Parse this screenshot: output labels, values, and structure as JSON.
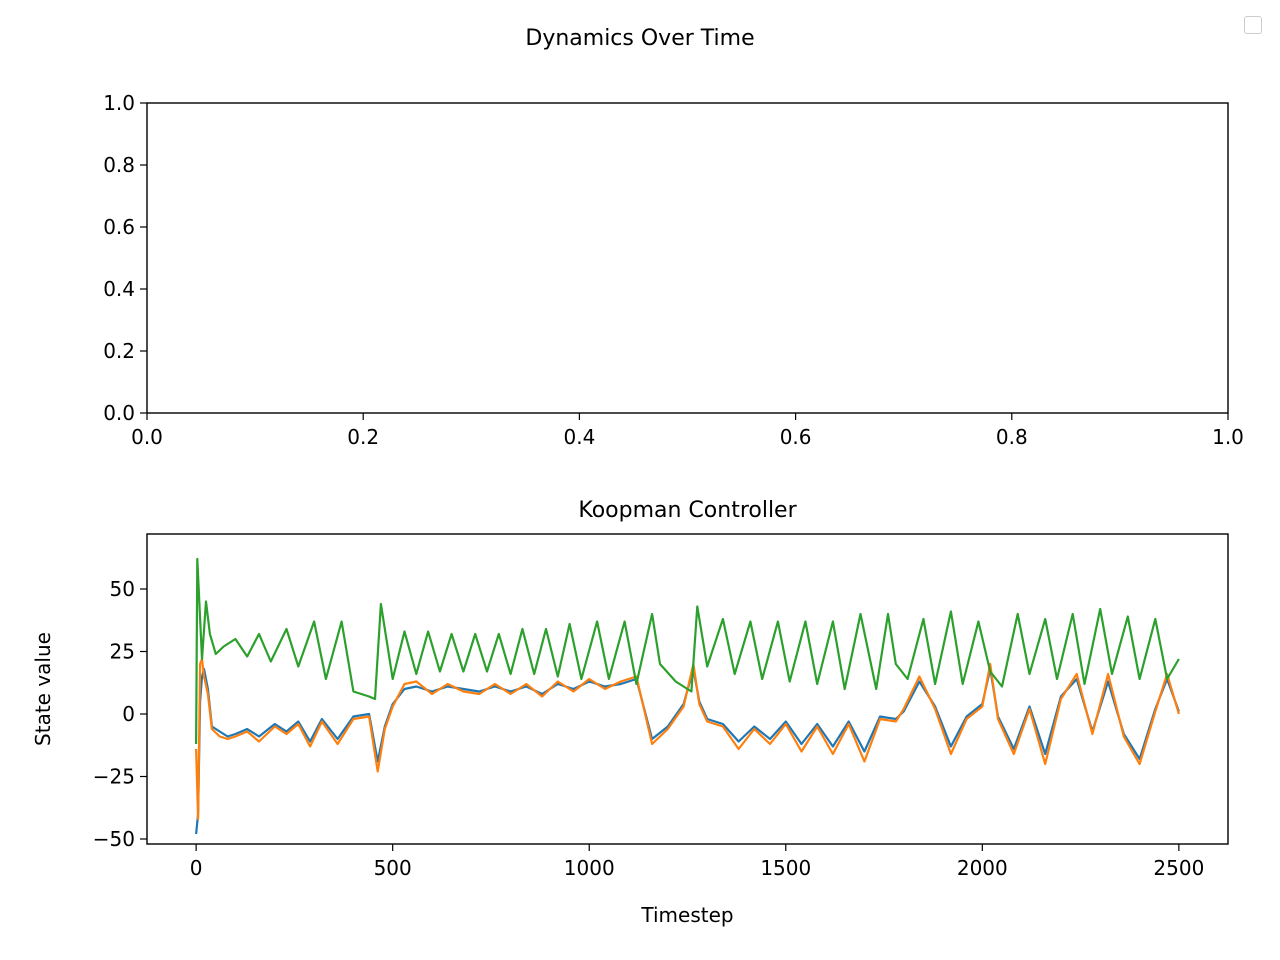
{
  "figure": {
    "suptitle": "Dynamics Over Time"
  },
  "chart_data": [
    {
      "type": "line",
      "title": "",
      "xlabel": "",
      "ylabel": "",
      "xlim": [
        0.0,
        1.0
      ],
      "ylim": [
        0.0,
        1.0
      ],
      "xticks": [
        "0.0",
        "0.2",
        "0.4",
        "0.6",
        "0.8",
        "1.0"
      ],
      "yticks": [
        "0.0",
        "0.2",
        "0.4",
        "0.6",
        "0.8",
        "1.0"
      ],
      "series": [],
      "legend": "top-right (empty)",
      "grid": false
    },
    {
      "type": "line",
      "title": "Koopman Controller",
      "xlabel": "Timestep",
      "ylabel": "State value",
      "xlim": [
        -125,
        2625
      ],
      "ylim": [
        -52,
        72
      ],
      "xticks": [
        "0",
        "500",
        "1000",
        "1500",
        "2000",
        "2500"
      ],
      "yticks": [
        "−50",
        "−25",
        "0",
        "25",
        "50"
      ],
      "grid": false,
      "series": [
        {
          "color": "#1f77b4",
          "x": [
            0,
            5,
            10,
            15,
            20,
            30,
            40,
            60,
            80,
            100,
            130,
            160,
            200,
            230,
            260,
            290,
            320,
            360,
            400,
            440,
            462,
            480,
            500,
            530,
            560,
            600,
            640,
            680,
            720,
            760,
            800,
            840,
            880,
            920,
            960,
            1000,
            1040,
            1080,
            1120,
            1160,
            1200,
            1240,
            1265,
            1280,
            1300,
            1340,
            1380,
            1420,
            1460,
            1500,
            1540,
            1580,
            1620,
            1660,
            1700,
            1740,
            1780,
            1800,
            1840,
            1880,
            1920,
            1960,
            2000,
            2020,
            2040,
            2080,
            2120,
            2160,
            2200,
            2240,
            2280,
            2320,
            2360,
            2400,
            2440,
            2470,
            2500
          ],
          "y": [
            -48,
            -40,
            5,
            15,
            18,
            10,
            -5,
            -7,
            -9,
            -8,
            -6,
            -9,
            -4,
            -7,
            -3,
            -11,
            -2,
            -10,
            -1,
            0,
            -19,
            -5,
            4,
            10,
            11,
            9,
            11,
            10,
            9,
            11,
            9,
            11,
            8,
            12,
            10,
            13,
            11,
            12,
            14,
            -10,
            -5,
            4,
            18,
            5,
            -2,
            -4,
            -11,
            -5,
            -10,
            -3,
            -12,
            -4,
            -13,
            -3,
            -15,
            -1,
            -2,
            1,
            13,
            3,
            -13,
            -1,
            4,
            18,
            -1,
            -14,
            3,
            -16,
            7,
            14,
            -7,
            13,
            -8,
            -18,
            2,
            14,
            1
          ]
        },
        {
          "color": "#ff7f0e",
          "x": [
            0,
            5,
            10,
            15,
            20,
            30,
            40,
            60,
            80,
            100,
            130,
            160,
            200,
            230,
            260,
            290,
            320,
            360,
            400,
            440,
            462,
            480,
            500,
            530,
            560,
            600,
            640,
            680,
            720,
            760,
            800,
            840,
            880,
            920,
            960,
            1000,
            1040,
            1080,
            1120,
            1160,
            1200,
            1240,
            1265,
            1280,
            1300,
            1340,
            1380,
            1420,
            1460,
            1500,
            1540,
            1580,
            1620,
            1660,
            1700,
            1740,
            1780,
            1800,
            1840,
            1880,
            1920,
            1960,
            2000,
            2020,
            2040,
            2080,
            2120,
            2160,
            2200,
            2240,
            2280,
            2320,
            2360,
            2400,
            2440,
            2470,
            2500
          ],
          "y": [
            -14,
            -42,
            20,
            22,
            15,
            8,
            -6,
            -9,
            -10,
            -9,
            -7,
            -11,
            -5,
            -8,
            -4,
            -13,
            -3,
            -12,
            -2,
            -1,
            -23,
            -6,
            3,
            12,
            13,
            8,
            12,
            9,
            8,
            12,
            8,
            12,
            7,
            13,
            9,
            14,
            10,
            13,
            15,
            -12,
            -6,
            3,
            20,
            4,
            -3,
            -5,
            -14,
            -6,
            -12,
            -4,
            -15,
            -5,
            -16,
            -4,
            -19,
            -2,
            -3,
            2,
            15,
            2,
            -16,
            -2,
            3,
            20,
            -2,
            -16,
            2,
            -20,
            6,
            16,
            -8,
            16,
            -9,
            -20,
            1,
            16,
            0
          ]
        },
        {
          "color": "#2ca02c",
          "x": [
            0,
            3,
            8,
            15,
            25,
            35,
            50,
            70,
            100,
            130,
            160,
            190,
            230,
            260,
            300,
            330,
            370,
            400,
            440,
            455,
            470,
            500,
            530,
            560,
            590,
            620,
            650,
            680,
            710,
            740,
            770,
            800,
            830,
            860,
            890,
            920,
            950,
            980,
            1020,
            1050,
            1090,
            1120,
            1160,
            1180,
            1220,
            1260,
            1275,
            1300,
            1340,
            1370,
            1410,
            1440,
            1480,
            1510,
            1550,
            1580,
            1620,
            1650,
            1690,
            1730,
            1760,
            1780,
            1810,
            1850,
            1880,
            1920,
            1950,
            1990,
            2020,
            2050,
            2090,
            2120,
            2160,
            2190,
            2230,
            2260,
            2300,
            2330,
            2370,
            2400,
            2440,
            2470,
            2500
          ],
          "y": [
            -12,
            62,
            45,
            22,
            45,
            32,
            24,
            27,
            30,
            23,
            32,
            21,
            34,
            19,
            37,
            14,
            37,
            9,
            7,
            6,
            44,
            14,
            33,
            16,
            33,
            17,
            32,
            17,
            32,
            17,
            32,
            16,
            34,
            16,
            34,
            15,
            36,
            14,
            37,
            14,
            37,
            12,
            40,
            20,
            13,
            9,
            43,
            19,
            38,
            16,
            37,
            14,
            37,
            13,
            37,
            12,
            37,
            10,
            40,
            10,
            40,
            20,
            14,
            38,
            12,
            41,
            12,
            37,
            17,
            11,
            40,
            16,
            38,
            14,
            40,
            12,
            42,
            16,
            39,
            14,
            38,
            14,
            22
          ]
        }
      ]
    }
  ]
}
